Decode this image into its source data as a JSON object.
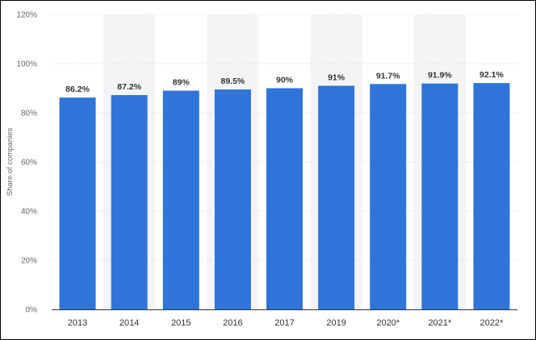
{
  "chart_data": {
    "type": "bar",
    "categories": [
      "2013",
      "2014",
      "2015",
      "2016",
      "2017",
      "2019",
      "2020*",
      "2021*",
      "2022*"
    ],
    "values": [
      86.2,
      87.2,
      89,
      89.5,
      90,
      91,
      91.7,
      91.9,
      92.1
    ],
    "value_labels": [
      "86.2%",
      "87.2%",
      "89%",
      "89.5%",
      "90%",
      "91%",
      "91.7%",
      "91.9%",
      "92.1%"
    ],
    "y_ticks": [
      0,
      20,
      40,
      60,
      80,
      100,
      120
    ],
    "y_tick_labels": [
      "0%",
      "20%",
      "40%",
      "60%",
      "80%",
      "100%",
      "120%"
    ],
    "ylim": [
      0,
      120
    ],
    "ylabel": "Share of companies",
    "xlabel": "",
    "title": "",
    "grid": true,
    "legend": "none",
    "colors": {
      "bar": "#2f74d8",
      "band": "#f4f4f6",
      "grid": "#d9d9d9",
      "axis": "#333333"
    }
  }
}
